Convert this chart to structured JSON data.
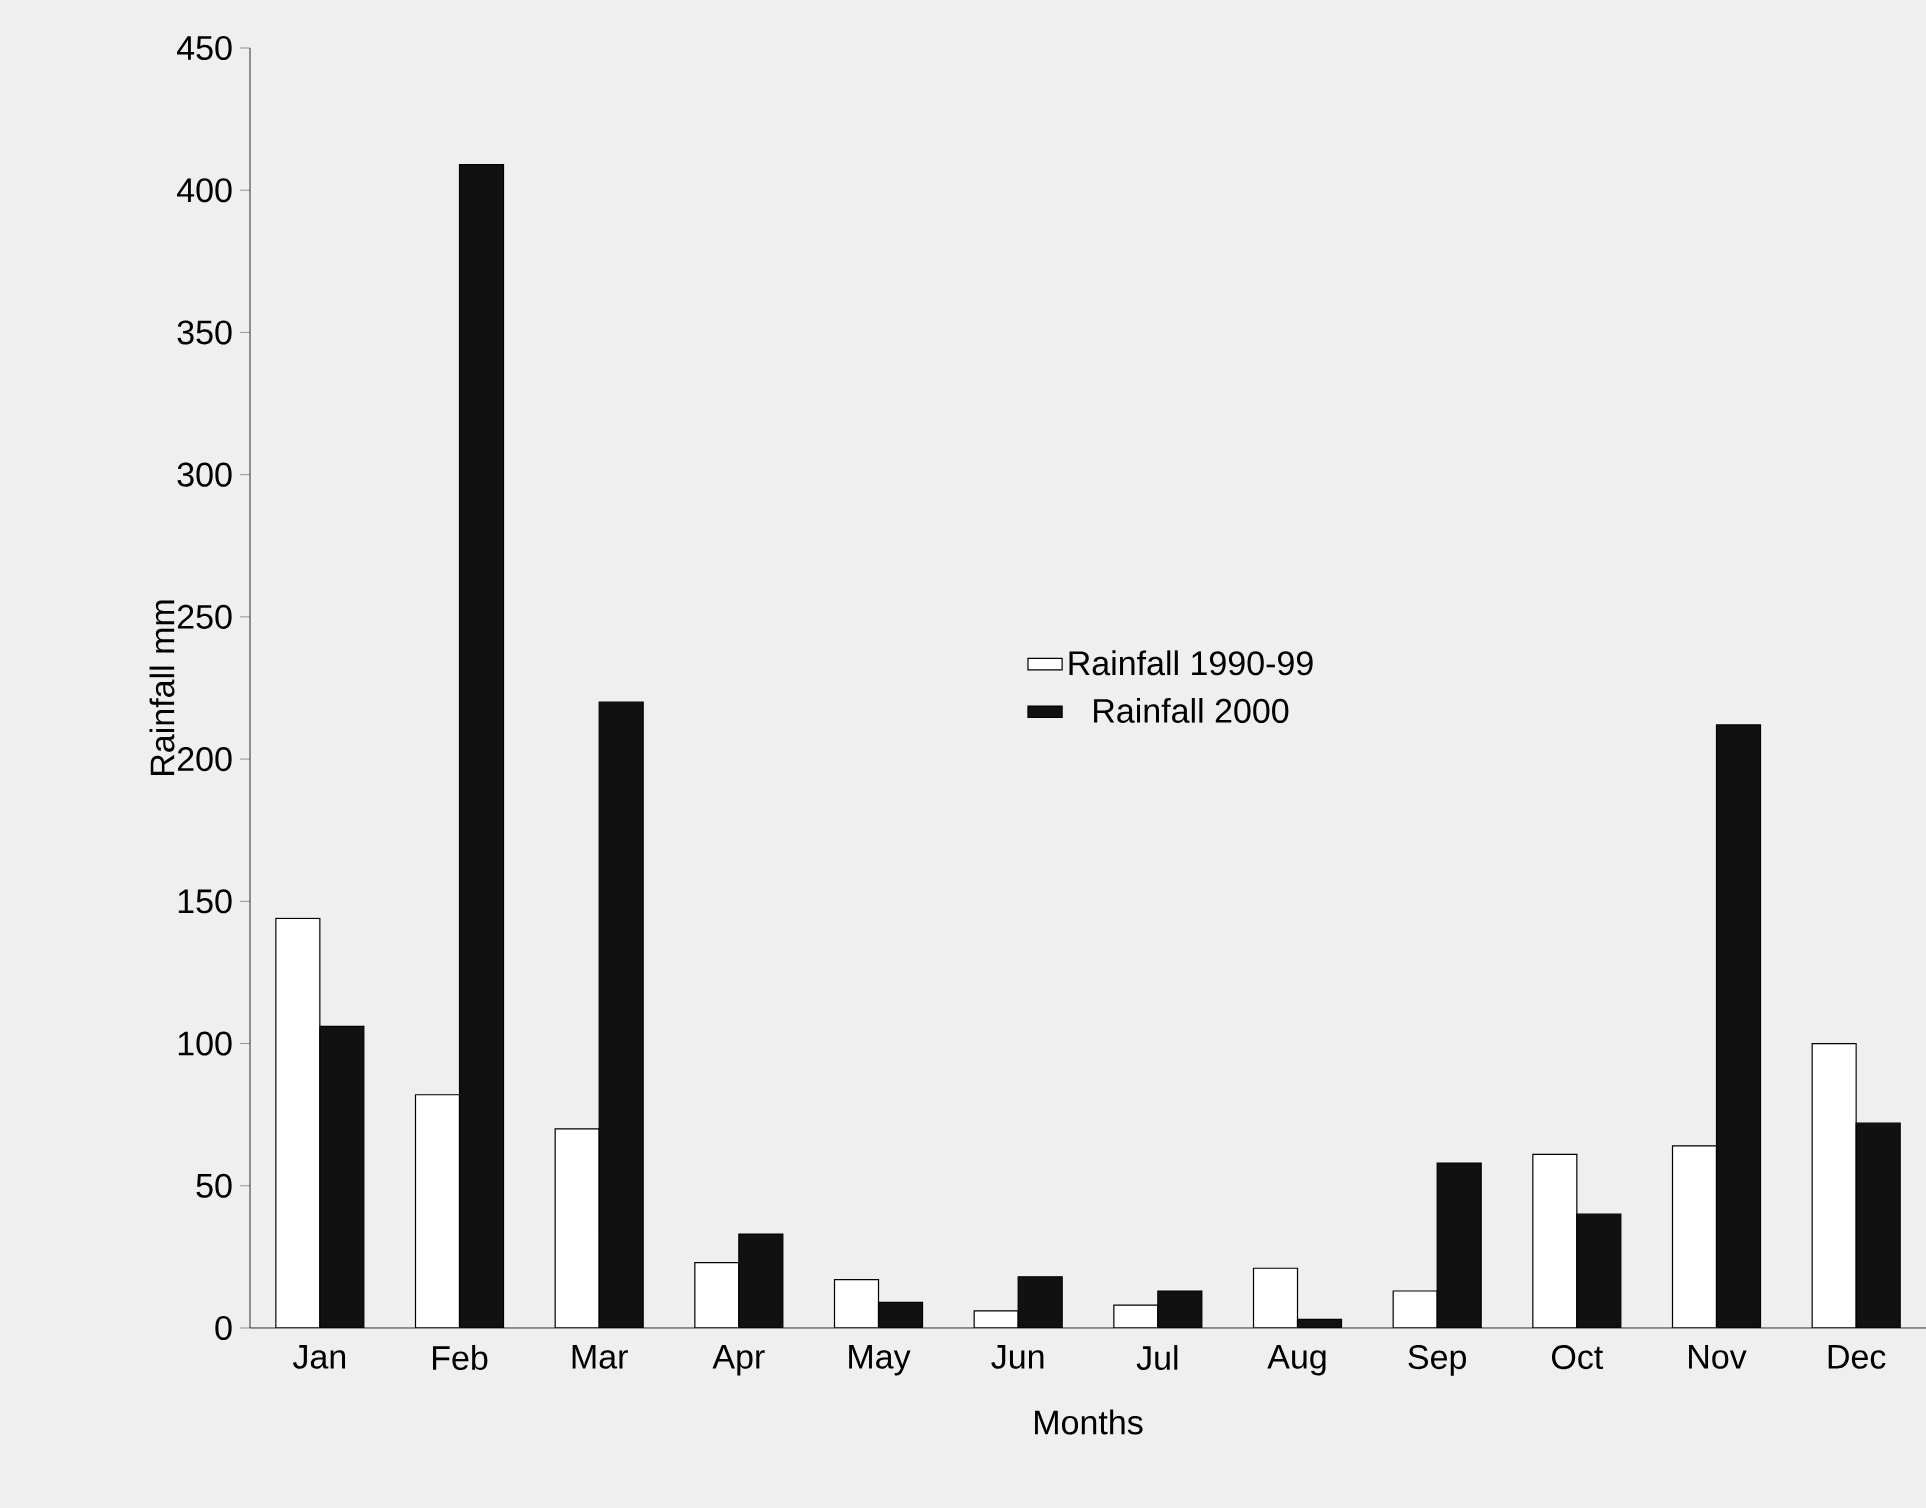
{
  "chart_data": {
    "type": "bar",
    "xlabel": "Months",
    "ylabel": "Rainfall mm",
    "categories": [
      "Jan",
      "Feb",
      "Mar",
      "Apr",
      "May",
      "Jun",
      "Jul",
      "Aug",
      "Sep",
      "Oct",
      "Nov",
      "Dec"
    ],
    "series": [
      {
        "name": "Rainfall 1990-99",
        "color": "#ffffff",
        "values": [
          144,
          82,
          70,
          23,
          17,
          6,
          8,
          21,
          13,
          61,
          64,
          100
        ]
      },
      {
        "name": "Rainfall 2000",
        "color": "#111111",
        "values": [
          106,
          409,
          220,
          33,
          9,
          18,
          13,
          3,
          58,
          40,
          212,
          72
        ]
      }
    ],
    "ylim": [
      0,
      450
    ],
    "yticks": [
      0,
      50,
      100,
      150,
      200,
      250,
      300,
      350,
      400,
      450
    ],
    "grid": false,
    "legend": "center"
  }
}
